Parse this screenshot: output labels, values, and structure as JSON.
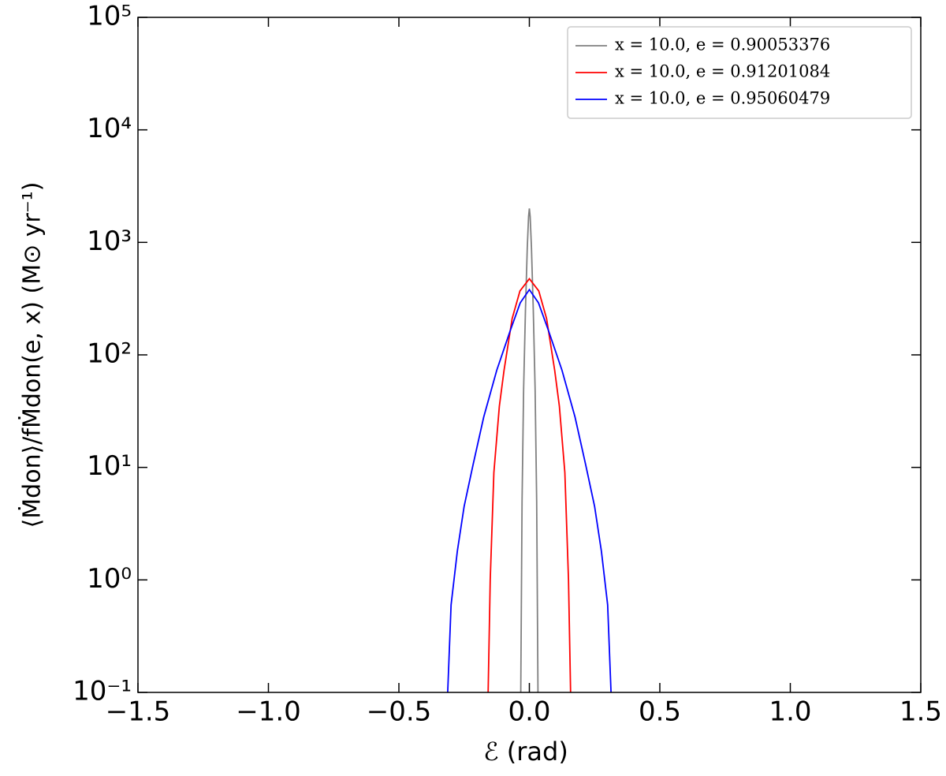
{
  "chart_data": {
    "type": "line",
    "xlabel": "ℰ (rad)",
    "ylabel": "⟨Ṁdon⟩/fṀdon(e, x) (M⊙ yr⁻¹)",
    "xlim": [
      -1.5,
      1.5
    ],
    "xticks": [
      {
        "value": -1.5,
        "label": "−1.5"
      },
      {
        "value": -1.0,
        "label": "−1.0"
      },
      {
        "value": -0.5,
        "label": "−0.5"
      },
      {
        "value": 0,
        "label": "0.0"
      },
      0.5,
      {
        "value": 1.0,
        "label": "1.0"
      },
      1.5
    ],
    "ylim": [
      0.1,
      100000
    ],
    "yscale": "log",
    "yticks": [
      {
        "value": 0.1,
        "label": "10⁻¹"
      },
      {
        "value": 1,
        "label": "10⁰"
      },
      {
        "value": 10,
        "label": "10¹"
      },
      {
        "value": 100,
        "label": "10²"
      },
      {
        "value": 1000,
        "label": "10³"
      },
      {
        "value": 10000,
        "label": "10⁴"
      },
      {
        "value": 100000,
        "label": "10⁵"
      }
    ],
    "legend": "upper right",
    "series": [
      {
        "name": "x = 10.0, e = 0.90053376",
        "color": "#808080",
        "x": [
          -0.033,
          -0.028,
          -0.022,
          -0.015,
          -0.008,
          -0.003,
          0,
          0.003,
          0.008,
          0.015,
          0.022,
          0.028,
          0.033
        ],
        "values": [
          0.1,
          5,
          50,
          250,
          900,
          1700,
          2000,
          1700,
          900,
          250,
          50,
          5,
          0.1
        ]
      },
      {
        "name": "x = 10.0, e = 0.91201084",
        "color": "#ff0000",
        "x": [
          -0.158,
          -0.15,
          -0.136,
          -0.115,
          -0.097,
          -0.066,
          -0.036,
          0,
          0.036,
          0.066,
          0.097,
          0.115,
          0.136,
          0.15,
          0.158
        ],
        "values": [
          0.1,
          1,
          9,
          35,
          73,
          210,
          370,
          475,
          370,
          210,
          73,
          35,
          9,
          1,
          0.1
        ]
      },
      {
        "name": "x = 10.0, e = 0.95060479",
        "color": "#0000ff",
        "x": [
          -0.313,
          -0.3,
          -0.276,
          -0.25,
          -0.216,
          -0.175,
          -0.125,
          -0.075,
          -0.035,
          0,
          0.035,
          0.075,
          0.125,
          0.175,
          0.216,
          0.25,
          0.276,
          0.3,
          0.313
        ],
        "values": [
          0.1,
          0.6,
          1.8,
          4.5,
          10.5,
          28,
          73,
          160,
          290,
          380,
          290,
          160,
          73,
          28,
          10.5,
          4.5,
          1.8,
          0.6,
          0.1
        ]
      }
    ]
  }
}
